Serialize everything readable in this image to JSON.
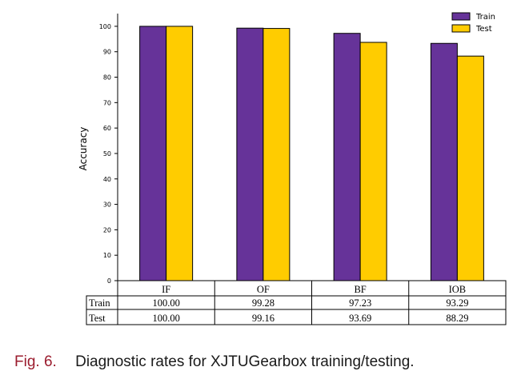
{
  "chart_data": {
    "type": "bar",
    "title": "",
    "xlabel": "",
    "ylabel": "Accuracy",
    "ylim": [
      0,
      105
    ],
    "yticks": [
      0,
      10,
      20,
      30,
      40,
      50,
      60,
      70,
      80,
      90,
      100
    ],
    "categories": [
      "IF",
      "OF",
      "BF",
      "IOB"
    ],
    "series": [
      {
        "name": "Train",
        "color": "#663399",
        "values": [
          100.0,
          99.28,
          97.23,
          93.29
        ]
      },
      {
        "name": "Test",
        "color": "#ffcc00",
        "values": [
          100.0,
          99.16,
          93.69,
          88.29
        ]
      }
    ],
    "table": {
      "rows": [
        {
          "label": "Train",
          "cells": [
            "100.00",
            "99.28",
            "97.23",
            "93.29"
          ]
        },
        {
          "label": "Test",
          "cells": [
            "100.00",
            "99.16",
            "93.69",
            "88.29"
          ]
        }
      ]
    },
    "legend_position": "top-right"
  },
  "caption": {
    "number": "Fig. 6.",
    "text": "Diagnostic rates for XJTUGearbox training/testing."
  }
}
